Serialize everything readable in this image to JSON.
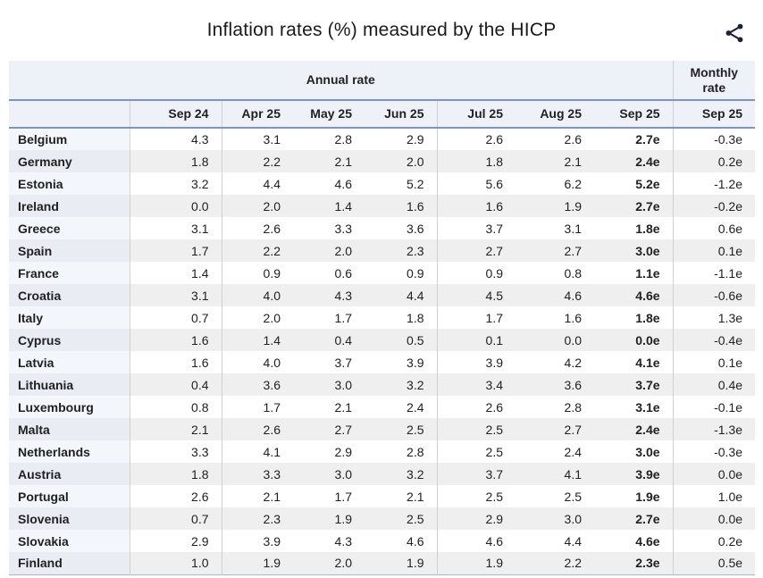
{
  "title": "Inflation rates (%) measured by the HICP",
  "colors": {
    "header_bg": "#eef2f8",
    "accent_rule": "#7e95b6",
    "grid_line": "#cfcfcf",
    "row_alt_bg": "#efefef",
    "name_cell_odd": "#f3f6fb",
    "name_cell_even": "#e9edf3",
    "text": "#202122",
    "icon": "#1c2433"
  },
  "chart_data": {
    "type": "table",
    "title": "Inflation rates (%) measured by the HICP",
    "group_headers": {
      "annual": "Annual rate",
      "monthly": "Monthly rate"
    },
    "annual_columns": [
      "Sep 24",
      "Apr 25",
      "May 25",
      "Jun 25",
      "Jul 25",
      "Aug 25",
      "Sep 25"
    ],
    "monthly_column": "Sep 25",
    "rows": [
      {
        "country": "Belgium",
        "annual": [
          "4.3",
          "3.1",
          "2.8",
          "2.9",
          "2.6",
          "2.6",
          "2.7e"
        ],
        "monthly": "-0.3e"
      },
      {
        "country": "Germany",
        "annual": [
          "1.8",
          "2.2",
          "2.1",
          "2.0",
          "1.8",
          "2.1",
          "2.4e"
        ],
        "monthly": "0.2e"
      },
      {
        "country": "Estonia",
        "annual": [
          "3.2",
          "4.4",
          "4.6",
          "5.2",
          "5.6",
          "6.2",
          "5.2e"
        ],
        "monthly": "-1.2e"
      },
      {
        "country": "Ireland",
        "annual": [
          "0.0",
          "2.0",
          "1.4",
          "1.6",
          "1.6",
          "1.9",
          "2.7e"
        ],
        "monthly": "-0.2e"
      },
      {
        "country": "Greece",
        "annual": [
          "3.1",
          "2.6",
          "3.3",
          "3.6",
          "3.7",
          "3.1",
          "1.8e"
        ],
        "monthly": "0.6e"
      },
      {
        "country": "Spain",
        "annual": [
          "1.7",
          "2.2",
          "2.0",
          "2.3",
          "2.7",
          "2.7",
          "3.0e"
        ],
        "monthly": "0.1e"
      },
      {
        "country": "France",
        "annual": [
          "1.4",
          "0.9",
          "0.6",
          "0.9",
          "0.9",
          "0.8",
          "1.1e"
        ],
        "monthly": "-1.1e"
      },
      {
        "country": "Croatia",
        "annual": [
          "3.1",
          "4.0",
          "4.3",
          "4.4",
          "4.5",
          "4.6",
          "4.6e"
        ],
        "monthly": "-0.6e"
      },
      {
        "country": "Italy",
        "annual": [
          "0.7",
          "2.0",
          "1.7",
          "1.8",
          "1.7",
          "1.6",
          "1.8e"
        ],
        "monthly": "1.3e"
      },
      {
        "country": "Cyprus",
        "annual": [
          "1.6",
          "1.4",
          "0.4",
          "0.5",
          "0.1",
          "0.0",
          "0.0e"
        ],
        "monthly": "-0.4e"
      },
      {
        "country": "Latvia",
        "annual": [
          "1.6",
          "4.0",
          "3.7",
          "3.9",
          "3.9",
          "4.2",
          "4.1e"
        ],
        "monthly": "0.1e"
      },
      {
        "country": "Lithuania",
        "annual": [
          "0.4",
          "3.6",
          "3.0",
          "3.2",
          "3.4",
          "3.6",
          "3.7e"
        ],
        "monthly": "0.4e"
      },
      {
        "country": "Luxembourg",
        "annual": [
          "0.8",
          "1.7",
          "2.1",
          "2.4",
          "2.6",
          "2.8",
          "3.1e"
        ],
        "monthly": "-0.1e"
      },
      {
        "country": "Malta",
        "annual": [
          "2.1",
          "2.6",
          "2.7",
          "2.5",
          "2.5",
          "2.7",
          "2.4e"
        ],
        "monthly": "-1.3e"
      },
      {
        "country": "Netherlands",
        "annual": [
          "3.3",
          "4.1",
          "2.9",
          "2.8",
          "2.5",
          "2.4",
          "3.0e"
        ],
        "monthly": "-0.3e"
      },
      {
        "country": "Austria",
        "annual": [
          "1.8",
          "3.3",
          "3.0",
          "3.2",
          "3.7",
          "4.1",
          "3.9e"
        ],
        "monthly": "0.0e"
      },
      {
        "country": "Portugal",
        "annual": [
          "2.6",
          "2.1",
          "1.7",
          "2.1",
          "2.5",
          "2.5",
          "1.9e"
        ],
        "monthly": "1.0e"
      },
      {
        "country": "Slovenia",
        "annual": [
          "0.7",
          "2.3",
          "1.9",
          "2.5",
          "2.9",
          "3.0",
          "2.7e"
        ],
        "monthly": "0.0e"
      },
      {
        "country": "Slovakia",
        "annual": [
          "2.9",
          "3.9",
          "4.3",
          "4.6",
          "4.6",
          "4.4",
          "4.6e"
        ],
        "monthly": "0.2e"
      },
      {
        "country": "Finland",
        "annual": [
          "1.0",
          "1.9",
          "2.0",
          "1.9",
          "1.9",
          "2.2",
          "2.3e"
        ],
        "monthly": "0.5e"
      }
    ]
  }
}
